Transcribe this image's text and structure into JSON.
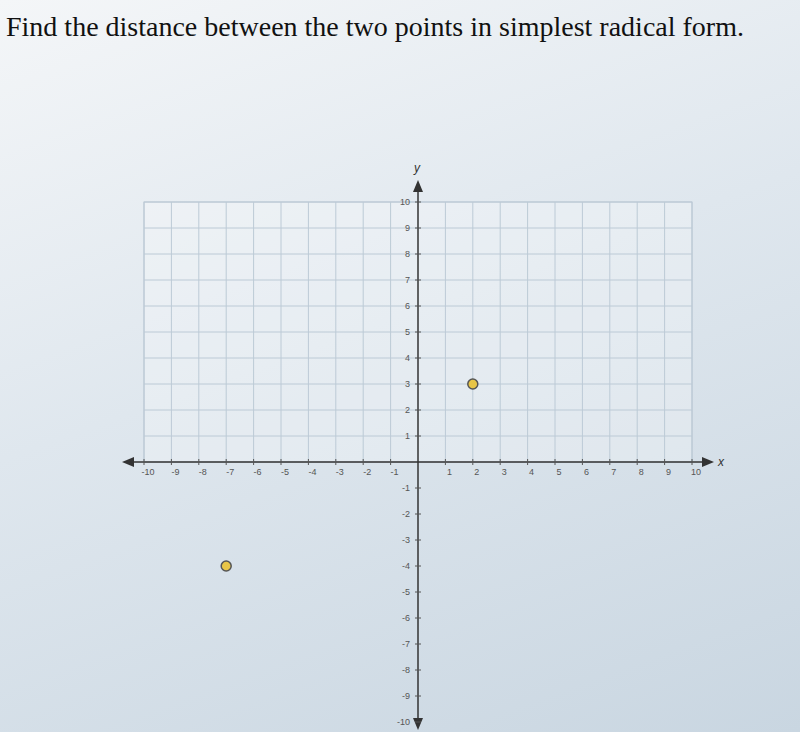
{
  "chart_data": {
    "type": "scatter",
    "title": "Find the distance between the two points in simplest radical form.",
    "x_label": "x",
    "y_label": "y",
    "x": [
      -7,
      2
    ],
    "series": [
      {
        "values": [
          -4,
          3
        ],
        "color": "#e8c547",
        "marker": "circle"
      }
    ],
    "xlim": [
      -10,
      10
    ],
    "ylim": [
      -10,
      10
    ],
    "xticks": [
      -10,
      -9,
      -8,
      -7,
      -6,
      -5,
      -4,
      -3,
      -2,
      -1,
      1,
      2,
      3,
      4,
      5,
      6,
      7,
      8,
      9,
      10
    ],
    "yticks": [
      -10,
      -9,
      -8,
      -7,
      -6,
      -5,
      -4,
      -3,
      -2,
      -1,
      1,
      2,
      3,
      4,
      5,
      6,
      7,
      8,
      9,
      10
    ],
    "grid": true
  }
}
